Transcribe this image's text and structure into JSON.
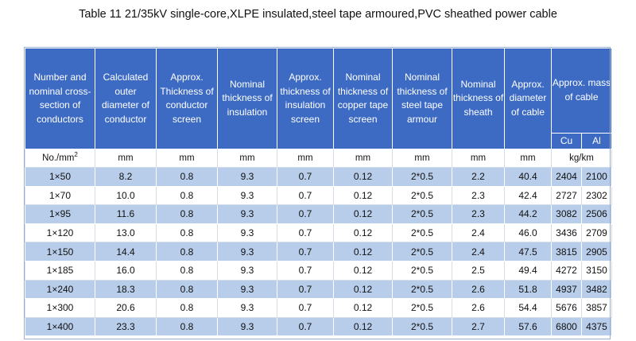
{
  "title": "Table 11    21/35kV single-core,XLPE insulated,steel tape armoured,PVC sheathed power cable",
  "headers": [
    "Number and nominal cross-section of conductors",
    "Calculated outer diameter of conductor",
    "Approx. Thickness of conductor screen",
    "Nominal thickness of insulation",
    "Approx. thickness of insulation screen",
    "Nominal thickness of copper tape screen",
    "Nominal thickness of steel tape armour",
    "Nominal thickness of sheath",
    "Approx. diameter of cable",
    "Approx. mass of cable"
  ],
  "mass_sub": [
    "Cu",
    "Al"
  ],
  "units": {
    "first": "No./mm",
    "first_sup": "2",
    "cols": [
      "mm",
      "mm",
      "mm",
      "mm",
      "mm",
      "mm",
      "mm",
      "mm"
    ],
    "mass": "kg/km"
  },
  "rows": [
    [
      "1×50",
      "8.2",
      "0.8",
      "9.3",
      "0.7",
      "0.12",
      "2*0.5",
      "2.2",
      "40.4",
      "2404",
      "2100"
    ],
    [
      "1×70",
      "10.0",
      "0.8",
      "9.3",
      "0.7",
      "0.12",
      "2*0.5",
      "2.3",
      "42.4",
      "2727",
      "2302"
    ],
    [
      "1×95",
      "11.6",
      "0.8",
      "9.3",
      "0.7",
      "0.12",
      "2*0.5",
      "2.3",
      "44.2",
      "3082",
      "2506"
    ],
    [
      "1×120",
      "13.0",
      "0.8",
      "9.3",
      "0.7",
      "0.12",
      "2*0.5",
      "2.4",
      "46.0",
      "3436",
      "2709"
    ],
    [
      "1×150",
      "14.4",
      "0.8",
      "9.3",
      "0.7",
      "0.12",
      "2*0.5",
      "2.4",
      "47.5",
      "3815",
      "2905"
    ],
    [
      "1×185",
      "16.0",
      "0.8",
      "9.3",
      "0.7",
      "0.12",
      "2*0.5",
      "2.5",
      "49.4",
      "4272",
      "3150"
    ],
    [
      "1×240",
      "18.3",
      "0.8",
      "9.3",
      "0.7",
      "0.12",
      "2*0.5",
      "2.6",
      "51.8",
      "4937",
      "3482"
    ],
    [
      "1×300",
      "20.6",
      "0.8",
      "9.3",
      "0.7",
      "0.12",
      "2*0.5",
      "2.6",
      "54.4",
      "5676",
      "3857"
    ],
    [
      "1×400",
      "23.3",
      "0.8",
      "9.3",
      "0.7",
      "0.12",
      "2*0.5",
      "2.7",
      "57.6",
      "6800",
      "4375"
    ]
  ],
  "colors": {
    "header": "#3d6bc4",
    "shade": "#b8cde9"
  }
}
